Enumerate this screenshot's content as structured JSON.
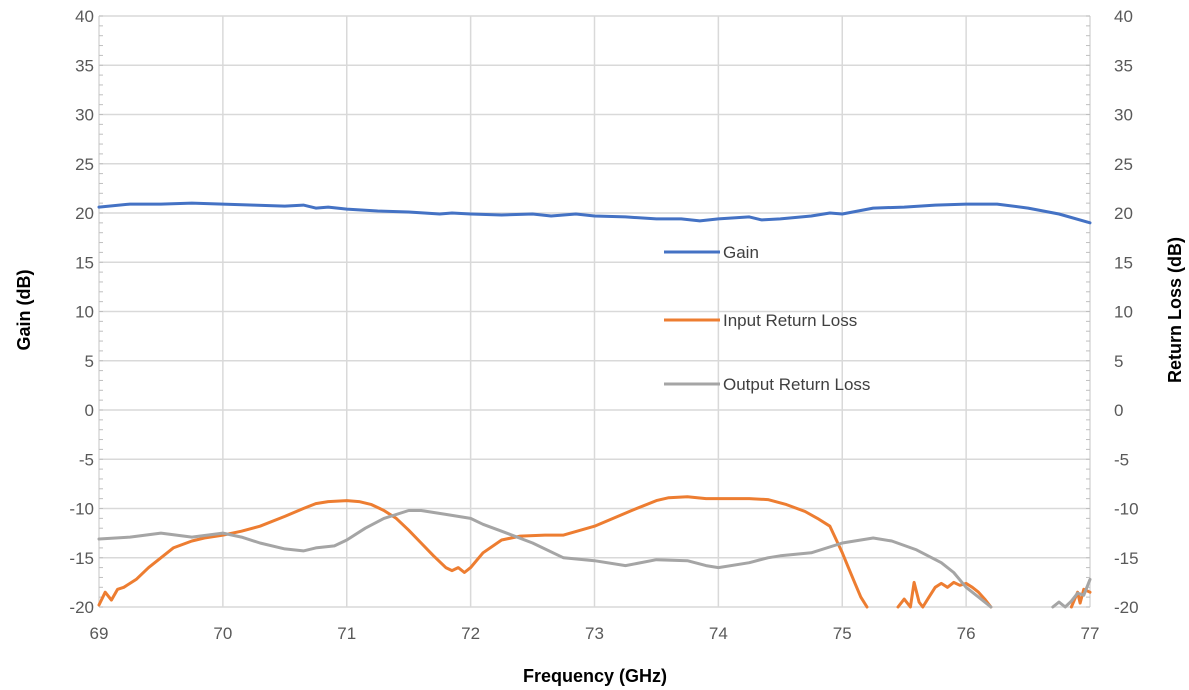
{
  "chart_data": {
    "type": "line",
    "title": "",
    "xlabel": "Frequency (GHz)",
    "ylabel": "Gain (dB)",
    "y2label": "Return Loss (dB)",
    "xlim": [
      69,
      77
    ],
    "ylim": [
      -20,
      40
    ],
    "y2lim": [
      -20,
      40
    ],
    "x_ticks": [
      "69",
      "70",
      "71",
      "72",
      "73",
      "74",
      "75",
      "76",
      "77"
    ],
    "y_ticks": [
      "40",
      "35",
      "30",
      "25",
      "20",
      "15",
      "10",
      "5",
      "0",
      "-5",
      "-10",
      "-15",
      "-20"
    ],
    "y2_ticks": [
      "40",
      "35",
      "30",
      "25",
      "20",
      "15",
      "10",
      "5",
      "0",
      "-5",
      "-10",
      "-15",
      "-20"
    ],
    "grid": true,
    "legend_position": "center-right inside plot",
    "series": [
      {
        "name": "Gain",
        "axis": "left",
        "color": "#4472C4",
        "x": [
          69.0,
          69.25,
          69.5,
          69.75,
          70.0,
          70.25,
          70.5,
          70.65,
          70.75,
          70.85,
          71.0,
          71.25,
          71.5,
          71.75,
          71.85,
          72.0,
          72.25,
          72.5,
          72.65,
          72.85,
          73.0,
          73.25,
          73.5,
          73.7,
          73.85,
          74.0,
          74.25,
          74.35,
          74.5,
          74.75,
          74.9,
          75.0,
          75.25,
          75.5,
          75.75,
          76.0,
          76.25,
          76.5,
          76.75,
          77.0
        ],
        "y": [
          20.6,
          20.9,
          20.9,
          21.0,
          20.9,
          20.8,
          20.7,
          20.8,
          20.5,
          20.6,
          20.4,
          20.2,
          20.1,
          19.9,
          20.0,
          19.9,
          19.8,
          19.9,
          19.7,
          19.9,
          19.7,
          19.6,
          19.4,
          19.4,
          19.2,
          19.4,
          19.6,
          19.3,
          19.4,
          19.7,
          20.0,
          19.9,
          20.5,
          20.6,
          20.8,
          20.9,
          20.9,
          20.5,
          19.9,
          19.0
        ]
      },
      {
        "name": "Input Return Loss",
        "axis": "right",
        "color": "#ED7D31",
        "segments": [
          {
            "x": [
              69.0,
              69.05,
              69.1,
              69.15,
              69.2,
              69.3,
              69.4,
              69.5,
              69.6,
              69.75,
              69.85,
              70.0,
              70.15,
              70.3,
              70.5,
              70.65,
              70.75,
              70.85,
              71.0,
              71.1,
              71.2,
              71.3,
              71.4,
              71.5,
              71.6,
              71.7,
              71.8,
              71.85,
              71.9,
              71.95,
              72.0,
              72.1,
              72.25,
              72.4,
              72.6,
              72.75,
              73.0,
              73.15,
              73.3,
              73.5,
              73.6,
              73.75,
              73.9,
              74.0,
              74.25,
              74.4,
              74.55,
              74.7,
              74.8,
              74.9,
              75.0,
              75.05,
              75.1,
              75.15,
              75.2
            ],
            "y": [
              -19.8,
              -18.5,
              -19.3,
              -18.2,
              -18.0,
              -17.2,
              -16.0,
              -15.0,
              -14.0,
              -13.3,
              -13.0,
              -12.7,
              -12.3,
              -11.8,
              -10.8,
              -10.0,
              -9.5,
              -9.3,
              -9.2,
              -9.3,
              -9.6,
              -10.2,
              -11.0,
              -12.2,
              -13.5,
              -14.8,
              -16.0,
              -16.3,
              -16.0,
              -16.5,
              -16.0,
              -14.5,
              -13.2,
              -12.8,
              -12.7,
              -12.7,
              -11.8,
              -11.0,
              -10.2,
              -9.2,
              -8.9,
              -8.8,
              -9.0,
              -9.0,
              -9.0,
              -9.1,
              -9.6,
              -10.3,
              -11.0,
              -11.8,
              -14.5,
              -16.0,
              -17.5,
              -19.0,
              -20.0
            ]
          },
          {
            "x": [
              75.45,
              75.5,
              75.55,
              75.58,
              75.62,
              75.65,
              75.7,
              75.75,
              75.8,
              75.85,
              75.9,
              75.95,
              76.0,
              76.05,
              76.1,
              76.15,
              76.2
            ],
            "y": [
              -20.0,
              -19.2,
              -20.0,
              -17.5,
              -19.5,
              -20.0,
              -19.0,
              -18.0,
              -17.6,
              -18.0,
              -17.5,
              -17.8,
              -17.6,
              -18.0,
              -18.5,
              -19.2,
              -20.0
            ]
          },
          {
            "x": [
              76.85,
              76.9,
              76.92,
              76.95,
              77.0
            ],
            "y": [
              -20.0,
              -18.5,
              -19.6,
              -18.2,
              -18.5
            ]
          }
        ]
      },
      {
        "name": "Output Return Loss",
        "axis": "right",
        "color": "#A5A5A5",
        "segments": [
          {
            "x": [
              69.0,
              69.25,
              69.5,
              69.75,
              70.0,
              70.15,
              70.3,
              70.5,
              70.65,
              70.75,
              70.9,
              71.0,
              71.15,
              71.3,
              71.5,
              71.6,
              71.8,
              72.0,
              72.1,
              72.25,
              72.5,
              72.75,
              73.0,
              73.25,
              73.5,
              73.75,
              73.9,
              74.0,
              74.25,
              74.4,
              74.5,
              74.75,
              75.0,
              75.15,
              75.25,
              75.4,
              75.6,
              75.8,
              75.9,
              76.0,
              76.1,
              76.2
            ],
            "y": [
              -13.1,
              -12.9,
              -12.5,
              -12.9,
              -12.5,
              -12.9,
              -13.5,
              -14.1,
              -14.3,
              -14.0,
              -13.8,
              -13.2,
              -12.0,
              -11.0,
              -10.2,
              -10.2,
              -10.6,
              -11.0,
              -11.6,
              -12.3,
              -13.5,
              -15.0,
              -15.3,
              -15.8,
              -15.2,
              -15.3,
              -15.8,
              -16.0,
              -15.5,
              -15.0,
              -14.8,
              -14.5,
              -13.5,
              -13.2,
              -13.0,
              -13.3,
              -14.2,
              -15.5,
              -16.5,
              -18.0,
              -19.0,
              -20.0
            ]
          },
          {
            "x": [
              76.7,
              76.75,
              76.8,
              76.85,
              76.9,
              76.95,
              77.0
            ],
            "y": [
              -20.0,
              -19.5,
              -20.0,
              -19.4,
              -18.6,
              -18.8,
              -17.2
            ]
          }
        ]
      }
    ]
  }
}
